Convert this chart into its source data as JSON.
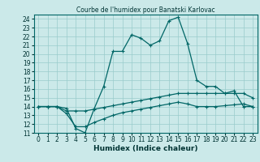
{
  "title": "Courbe de l'humidex pour Banatski Karlovac",
  "xlabel": "Humidex (Indice chaleur)",
  "bg_color": "#cbe9e9",
  "line_color": "#006666",
  "xlim": [
    -0.5,
    23.5
  ],
  "ylim": [
    11,
    24.5
  ],
  "yticks": [
    11,
    12,
    13,
    14,
    15,
    16,
    17,
    18,
    19,
    20,
    21,
    22,
    23,
    24
  ],
  "xticks": [
    0,
    1,
    2,
    3,
    4,
    5,
    6,
    7,
    8,
    9,
    10,
    11,
    12,
    13,
    14,
    15,
    16,
    17,
    18,
    19,
    20,
    21,
    22,
    23
  ],
  "line1_x": [
    0,
    1,
    2,
    3,
    4,
    5,
    6,
    7,
    8,
    9,
    10,
    11,
    12,
    13,
    14,
    15,
    16,
    17,
    18,
    19,
    20,
    21,
    22,
    23
  ],
  "line1_y": [
    14.0,
    14.0,
    14.0,
    13.8,
    11.5,
    11.0,
    13.8,
    16.3,
    20.3,
    20.3,
    22.2,
    21.8,
    21.0,
    21.5,
    23.8,
    24.2,
    21.2,
    17.0,
    16.3,
    16.3,
    15.5,
    15.8,
    14.0,
    14.0
  ],
  "line2_x": [
    0,
    1,
    2,
    3,
    4,
    5,
    6,
    7,
    8,
    9,
    10,
    11,
    12,
    13,
    14,
    15,
    16,
    17,
    18,
    19,
    20,
    21,
    22,
    23
  ],
  "line2_y": [
    14.0,
    14.0,
    14.0,
    13.5,
    13.5,
    13.5,
    13.7,
    13.9,
    14.1,
    14.3,
    14.5,
    14.7,
    14.9,
    15.1,
    15.3,
    15.5,
    15.5,
    15.5,
    15.5,
    15.5,
    15.5,
    15.5,
    15.5,
    15.0
  ],
  "line3_x": [
    0,
    1,
    2,
    3,
    4,
    5,
    6,
    7,
    8,
    9,
    10,
    11,
    12,
    13,
    14,
    15,
    16,
    17,
    18,
    19,
    20,
    21,
    22,
    23
  ],
  "line3_y": [
    14.0,
    14.0,
    14.0,
    13.2,
    11.7,
    11.7,
    12.2,
    12.6,
    13.0,
    13.3,
    13.5,
    13.7,
    13.9,
    14.1,
    14.3,
    14.5,
    14.3,
    14.0,
    14.0,
    14.0,
    14.1,
    14.2,
    14.3,
    14.0
  ],
  "title_fontsize": 5.5,
  "xlabel_fontsize": 6.5,
  "tick_fontsize": 5.5
}
